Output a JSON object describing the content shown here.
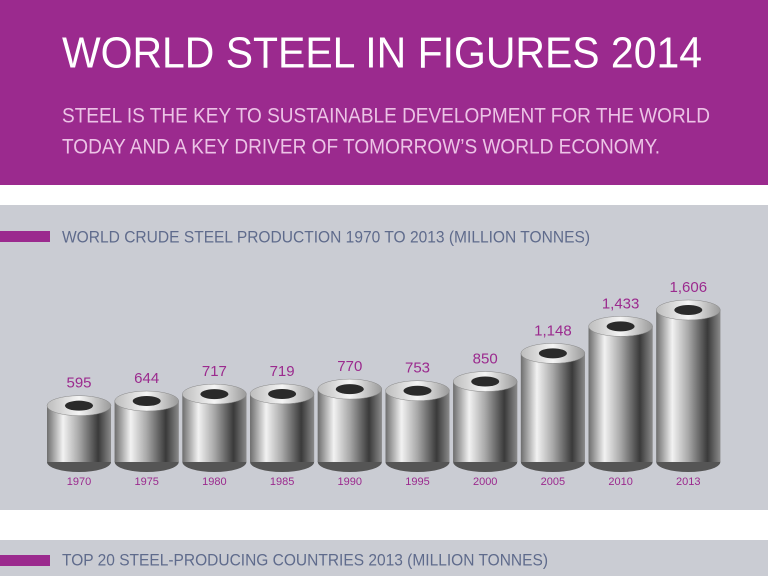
{
  "header": {
    "title": "WORLD STEEL IN FIGURES 2014",
    "subtitle": [
      "STEEL IS THE KEY TO SUSTAINABLE DEVELOPMENT FOR THE WORLD",
      "TODAY AND A KEY DRIVER OF TOMORROW’S WORLD ECONOMY."
    ]
  },
  "chart_data": {
    "type": "cylinder",
    "title": "WORLD CRUDE STEEL PRODUCTION 1970 TO 2013 (MILLION TONNES)",
    "categories": [
      "1970",
      "1975",
      "1980",
      "1985",
      "1990",
      "1995",
      "2000",
      "2005",
      "2010",
      "2013"
    ],
    "values": [
      595,
      644,
      717,
      719,
      770,
      753,
      850,
      1148,
      1433,
      1606
    ],
    "value_labels": [
      "595",
      "644",
      "717",
      "719",
      "770",
      "753",
      "850",
      "1,148",
      "1,433",
      "1,606"
    ],
    "color": "#9b2a8e"
  },
  "next_section": {
    "title": "TOP 20 STEEL-PRODUCING COUNTRIES 2013 (MILLION TONNES)"
  }
}
